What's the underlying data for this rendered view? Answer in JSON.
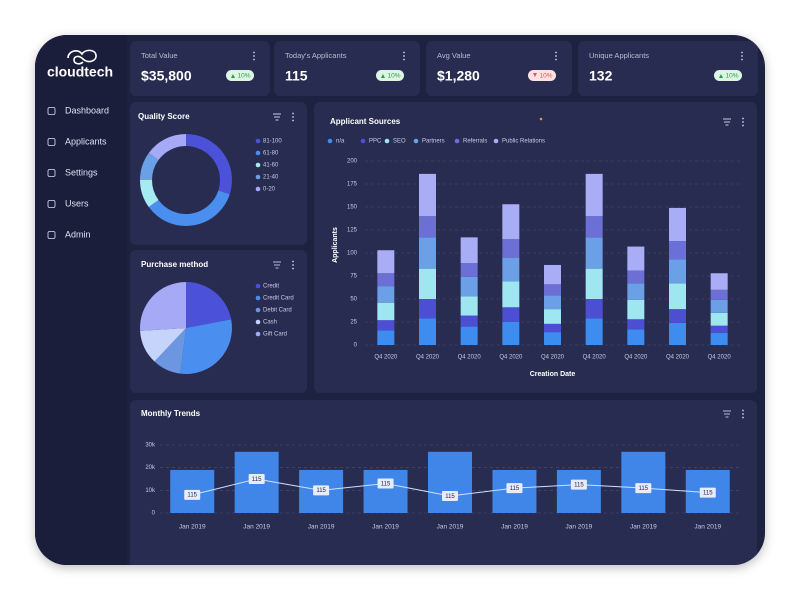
{
  "brand": "cloudtech",
  "nav": [
    "Dashboard",
    "Applicants",
    "Settings",
    "Users",
    "Admin"
  ],
  "kpis": [
    {
      "label": "Total Value",
      "value": "$35,800",
      "change": "10%",
      "trend": "up"
    },
    {
      "label": "Today's Applicants",
      "value": "115",
      "change": "10%",
      "trend": "up"
    },
    {
      "label": "Avg Value",
      "value": "$1,280",
      "change": "10%",
      "trend": "down"
    },
    {
      "label": "Unique Applicants",
      "value": "132",
      "change": "10%",
      "trend": "up"
    }
  ],
  "chart_data": [
    {
      "type": "donut",
      "title": "Quality Score",
      "categories": [
        "81-100",
        "61-80",
        "41-60",
        "21-40",
        "0-20"
      ],
      "values": [
        30,
        35,
        10,
        10,
        15
      ],
      "colors": [
        "#4b52d9",
        "#4a8ef0",
        "#a5ecf2",
        "#6aa0e6",
        "#a6a9f6"
      ]
    },
    {
      "type": "pie",
      "title": "Purchase method",
      "categories": [
        "Credit",
        "Credit Card",
        "Debit Card",
        "Cash",
        "Gift Card"
      ],
      "values": [
        22,
        30,
        10,
        12,
        26
      ],
      "colors": [
        "#4b52d9",
        "#4a8ef0",
        "#6c97e0",
        "#c6d3fb",
        "#a6a9f6"
      ]
    },
    {
      "type": "bar",
      "stacked": true,
      "title": "Applicant Sources",
      "categories": [
        "Q4 2020",
        "Q4 2020",
        "Q4 2020",
        "Q4 2020",
        "Q4 2020",
        "Q4 2020",
        "Q4 2020",
        "Q4 2020",
        "Q4 2020"
      ],
      "series": [
        {
          "name": "n/a",
          "color": "#3d8cf0",
          "values": [
            16,
            29,
            20,
            25,
            14,
            29,
            17,
            24,
            13
          ]
        },
        {
          "name": "PPC",
          "color": "#4c4fd4",
          "values": [
            11,
            21,
            12,
            16,
            9,
            21,
            11,
            15,
            8
          ]
        },
        {
          "name": "SEO",
          "color": "#9fe7f0",
          "values": [
            19,
            33,
            21,
            28,
            16,
            33,
            21,
            28,
            14
          ]
        },
        {
          "name": "Partners",
          "color": "#6b9fe6",
          "values": [
            18,
            34,
            21,
            26,
            15,
            34,
            18,
            26,
            14
          ]
        },
        {
          "name": "Referrals",
          "color": "#6b6fd6",
          "values": [
            14,
            23,
            15,
            20,
            12,
            23,
            14,
            20,
            11
          ]
        },
        {
          "name": "Public Relations",
          "color": "#a9adf6",
          "values": [
            25,
            46,
            28,
            38,
            21,
            46,
            26,
            36,
            18
          ]
        }
      ],
      "xlabel": "Creation Date",
      "ylabel": "Applicants",
      "ylim": [
        0,
        200
      ],
      "yticks": [
        0,
        25,
        50,
        75,
        100,
        125,
        150,
        175,
        200
      ],
      "grid": true,
      "legend": "top"
    },
    {
      "type": "bar-line",
      "title": "Monthly Trends",
      "categories": [
        "Jan 2019",
        "Jan 2019",
        "Jan 2019",
        "Jan 2019",
        "Jan 2019",
        "Jan 2019",
        "Jan 2019",
        "Jan 2019",
        "Jan 2019"
      ],
      "series": [
        {
          "type": "bar",
          "color": "#3f86e8",
          "values": [
            19000,
            27000,
            19000,
            19000,
            27000,
            19000,
            19000,
            27000,
            19000
          ]
        },
        {
          "type": "line",
          "color": "#cfe0ff",
          "values": [
            8000,
            15000,
            10000,
            13000,
            7500,
            11000,
            12500,
            11000,
            9000
          ]
        }
      ],
      "annotations": [
        "115",
        "115",
        "115",
        "115",
        "115",
        "115",
        "115",
        "115",
        "115"
      ],
      "ylim": [
        0,
        30000
      ],
      "yticks": [
        0,
        {
          "value": 10000,
          "label": "10k"
        },
        {
          "value": 20000,
          "label": "20k"
        },
        {
          "value": 30000,
          "label": "30k"
        }
      ],
      "grid": true
    }
  ]
}
